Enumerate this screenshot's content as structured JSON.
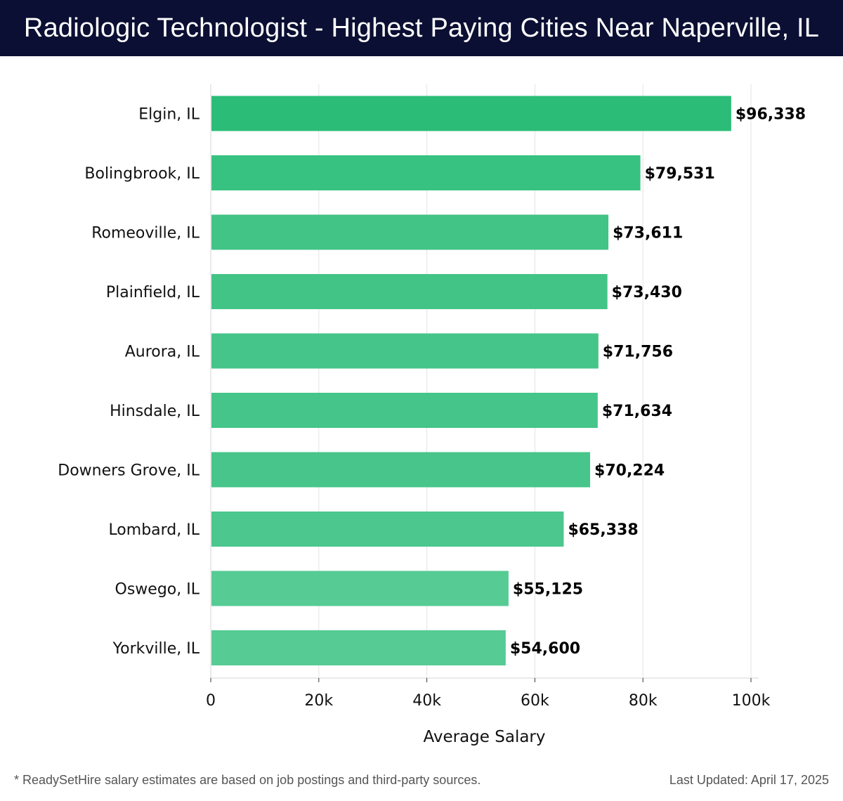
{
  "header": {
    "title": "Radiologic Technologist - Highest Paying Cities Near Naperville, IL"
  },
  "chart_data": {
    "type": "bar",
    "orientation": "horizontal",
    "categories": [
      "Elgin, IL",
      "Bolingbrook, IL",
      "Romeoville, IL",
      "Plainfield, IL",
      "Aurora, IL",
      "Hinsdale, IL",
      "Downers Grove, IL",
      "Lombard, IL",
      "Oswego, IL",
      "Yorkville, IL"
    ],
    "values": [
      96338,
      79531,
      73611,
      73430,
      71756,
      71634,
      70224,
      65338,
      55125,
      54600
    ],
    "value_labels": [
      "$96,338",
      "$79,531",
      "$73,611",
      "$73,430",
      "$71,756",
      "$71,634",
      "$70,224",
      "$65,338",
      "$55,125",
      "$54,600"
    ],
    "bar_colors": [
      "#2bbd77",
      "#38c281",
      "#43c487",
      "#43c487",
      "#45c589",
      "#45c589",
      "#47c58a",
      "#4cc78d",
      "#56cb94",
      "#56cb94"
    ],
    "xlabel": "Average Salary",
    "ylabel": "",
    "xlim": [
      0,
      100000
    ],
    "xticks": [
      0,
      20000,
      40000,
      60000,
      80000,
      100000
    ],
    "xtick_labels": [
      "0",
      "20k",
      "40k",
      "60k",
      "80k",
      "100k"
    ],
    "grid": "vertical"
  },
  "footer": {
    "note": "* ReadySetHire salary estimates are based on job postings and third-party sources.",
    "updated": "Last Updated: April 17, 2025"
  }
}
